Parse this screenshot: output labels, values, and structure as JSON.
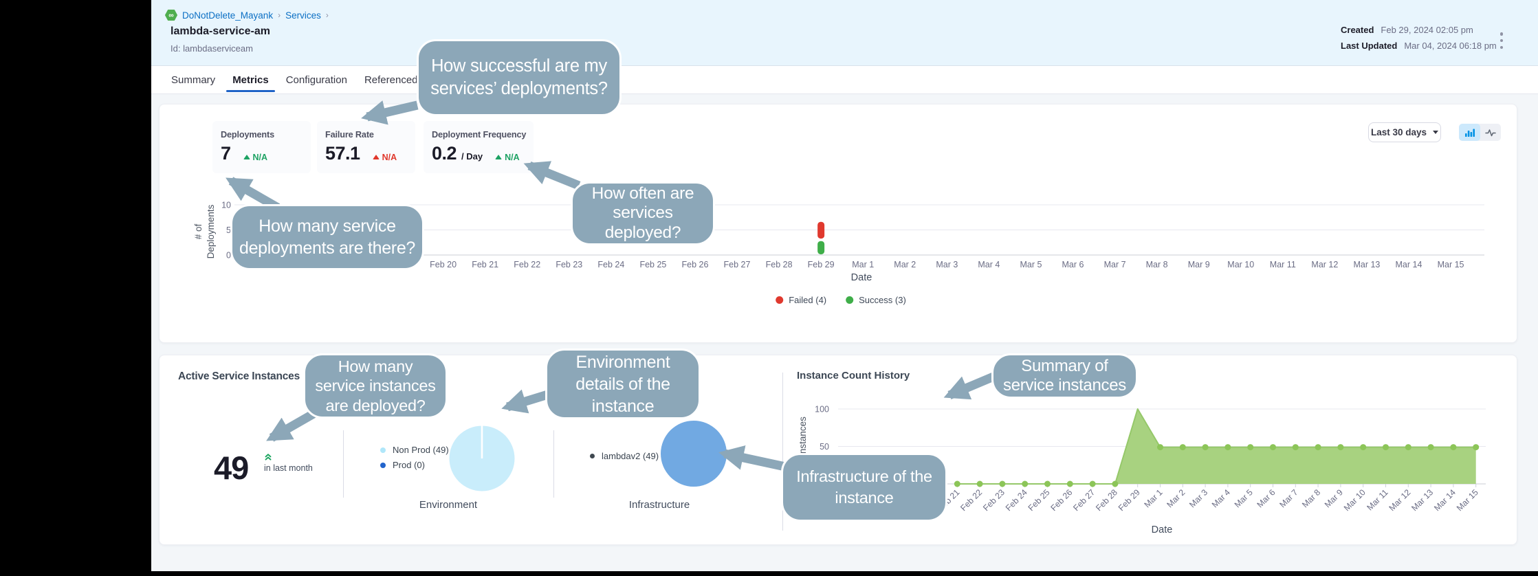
{
  "colors": {
    "accent_blue": "#2064c7",
    "link_blue": "#0b6fc4",
    "header_bg": "#e8f5fd",
    "page_bg": "#f3f6f9",
    "callout": "#8ca7b8",
    "failed_red": "#e0392e",
    "success_green": "#3fae49",
    "trend_green": "#1da263",
    "trend_red": "#e0372b",
    "area_green_fill": "#a5d17c",
    "area_green_line": "#95c869",
    "area_green_dot": "#8cc558",
    "env_pie": "#c9edfb",
    "infra_pie": "#71a9e2",
    "nonprod_dot": "#b0e7fa",
    "prod_dot": "#2264cc",
    "lambdav2_dot": "#3f4850",
    "module_icon_green": "#4fae4f",
    "toggle_active_bg": "#cde9fc",
    "toggle_bars_blue": "#0092e4"
  },
  "header": {
    "breadcrumb": [
      "DoNotDelete_Mayank",
      "Services"
    ],
    "breadcrumb_icon": "cd-module-icon",
    "title": "lambda-service-am",
    "id_line": "Id: lambdaserviceam",
    "created_label": "Created",
    "created_value": "Feb 29, 2024 02:05 pm",
    "updated_label": "Last Updated",
    "updated_value": "Mar 04, 2024 06:18 pm"
  },
  "tabs": [
    {
      "label": "Summary",
      "active": false
    },
    {
      "label": "Metrics",
      "active": true
    },
    {
      "label": "Configuration",
      "active": false
    },
    {
      "label": "Referenced",
      "active": false
    }
  ],
  "deployments_card": {
    "metrics": [
      {
        "label": "Deployments",
        "value": "7",
        "suffix": "",
        "trend": "N/A",
        "trend_color": "green"
      },
      {
        "label": "Failure Rate",
        "value": "57.1",
        "suffix": "",
        "trend": "N/A",
        "trend_color": "red"
      },
      {
        "label": "Deployment Frequency",
        "value": "0.2",
        "suffix": "/ Day",
        "trend": "N/A",
        "trend_color": "green"
      }
    ],
    "range_selector": "Last 30 days",
    "toggle_icons": [
      "bar-chart-icon",
      "line-chart-icon"
    ],
    "chart_data": {
      "type": "bar",
      "stacked": true,
      "categories": [
        "Feb 20",
        "Feb 21",
        "Feb 22",
        "Feb 23",
        "Feb 24",
        "Feb 25",
        "Feb 26",
        "Feb 27",
        "Feb 28",
        "Feb 29",
        "Mar 1",
        "Mar 2",
        "Mar 3",
        "Mar 4",
        "Mar 5",
        "Mar 6",
        "Mar 7",
        "Mar 8",
        "Mar 9",
        "Mar 10",
        "Mar 11",
        "Mar 12",
        "Mar 13",
        "Mar 14",
        "Mar 15"
      ],
      "series": [
        {
          "name": "Success (3)",
          "color": "#3fae49",
          "values": [
            0,
            0,
            0,
            0,
            0,
            0,
            0,
            0,
            0,
            3,
            0,
            0,
            0,
            0,
            0,
            0,
            0,
            0,
            0,
            0,
            0,
            0,
            0,
            0,
            0
          ]
        },
        {
          "name": "Failed (4)",
          "color": "#e0392e",
          "values": [
            0,
            0,
            0,
            0,
            0,
            0,
            0,
            0,
            0,
            4,
            0,
            0,
            0,
            0,
            0,
            0,
            0,
            0,
            0,
            0,
            0,
            0,
            0,
            0,
            0
          ]
        }
      ],
      "legend": [
        {
          "label": "Failed (4)",
          "color": "#e0392e"
        },
        {
          "label": "Success (3)",
          "color": "#3fae49"
        }
      ],
      "title": "",
      "xlabel": "Date",
      "ylabel": "# of Deployments",
      "ylabel_lines": [
        "# of",
        "Deployments"
      ],
      "yticks": [
        0,
        5,
        10
      ],
      "ylim": [
        0,
        10
      ],
      "grid": true,
      "legend_position": "bottom"
    }
  },
  "instances_card": {
    "title": "Active Service Instances",
    "count": "49",
    "count_trend_icon": "double-chevron-up-icon",
    "count_caption": "in last month",
    "environment": {
      "caption": "Environment",
      "legend": [
        {
          "label": "Non Prod (49)",
          "color": "#b0e7fa"
        },
        {
          "label": "Prod (0)",
          "color": "#2264cc"
        }
      ],
      "pie": {
        "type": "pie",
        "slices": [
          {
            "label": "Non Prod",
            "value": 49,
            "color": "#c9edfb"
          },
          {
            "label": "Prod",
            "value": 0,
            "color": "#2264cc"
          }
        ]
      }
    },
    "infrastructure": {
      "caption": "Infrastructure",
      "legend": [
        {
          "label": "lambdav2 (49)",
          "color": "#3f4850"
        }
      ],
      "pie": {
        "type": "pie",
        "slices": [
          {
            "label": "lambdav2",
            "value": 49,
            "color": "#71a9e2"
          }
        ]
      }
    },
    "history": {
      "title": "Instance Count History",
      "chart_data": {
        "type": "area",
        "categories": [
          "Feb 21",
          "Feb 22",
          "Feb 23",
          "Feb 24",
          "Feb 25",
          "Feb 26",
          "Feb 27",
          "Feb 28",
          "Feb 29",
          "Mar 1",
          "Mar 2",
          "Mar 3",
          "Mar 4",
          "Mar 5",
          "Mar 6",
          "Mar 7",
          "Mar 8",
          "Mar 9",
          "Mar 10",
          "Mar 11",
          "Mar 12",
          "Mar 13",
          "Mar 14",
          "Mar 15"
        ],
        "values": [
          0,
          0,
          0,
          0,
          0,
          0,
          0,
          0,
          100,
          49,
          49,
          49,
          49,
          49,
          49,
          49,
          49,
          49,
          49,
          49,
          49,
          49,
          49,
          49
        ],
        "markers_hidden": [
          "Feb 29"
        ],
        "title": "Instance Count History",
        "xlabel": "Date",
        "ylabel": "Instances",
        "yticks": [
          50,
          100
        ],
        "ylim": [
          0,
          107
        ],
        "grid": true
      }
    }
  },
  "callouts": [
    {
      "text": "How successful are my\nservices’ deployments?"
    },
    {
      "text": "How often are\nservices\ndeployed?"
    },
    {
      "text": "How many service\ndeployments are there?"
    },
    {
      "text": "How many\nservice instances\nare deployed?"
    },
    {
      "text": "Environment\ndetails of the\ninstance"
    },
    {
      "text": "Summary of\nservice instances"
    },
    {
      "text": "Infrastructure of the\ninstance"
    }
  ]
}
